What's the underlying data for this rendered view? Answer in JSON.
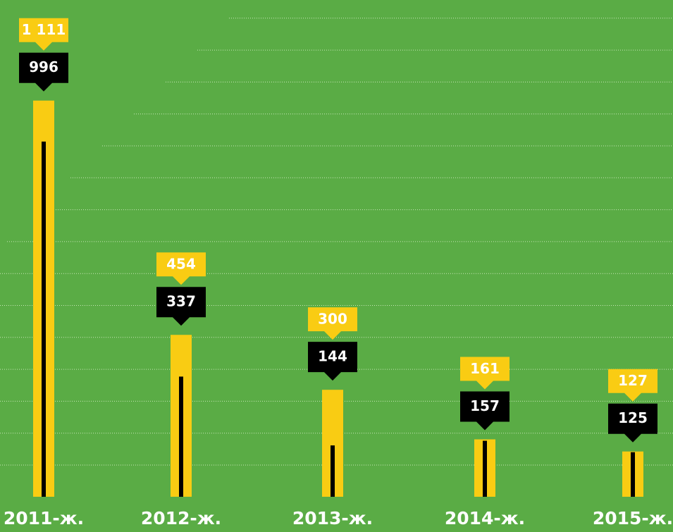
{
  "chart_data": {
    "type": "bar",
    "categories": [
      "2011-ж.",
      "2012-ж.",
      "2013-ж.",
      "2014-ж.",
      "2015-ж."
    ],
    "series": [
      {
        "color": "#f9cc13",
        "values": [
          1111,
          454,
          300,
          161,
          127
        ],
        "value_labels": [
          "1 111",
          "454",
          "300",
          "161",
          "127"
        ]
      },
      {
        "color": "#000000",
        "values": [
          996,
          337,
          144,
          157,
          125
        ],
        "value_labels": [
          "996",
          "337",
          "144",
          "157",
          "125"
        ]
      }
    ],
    "ylim": [
      0,
      1150
    ]
  }
}
